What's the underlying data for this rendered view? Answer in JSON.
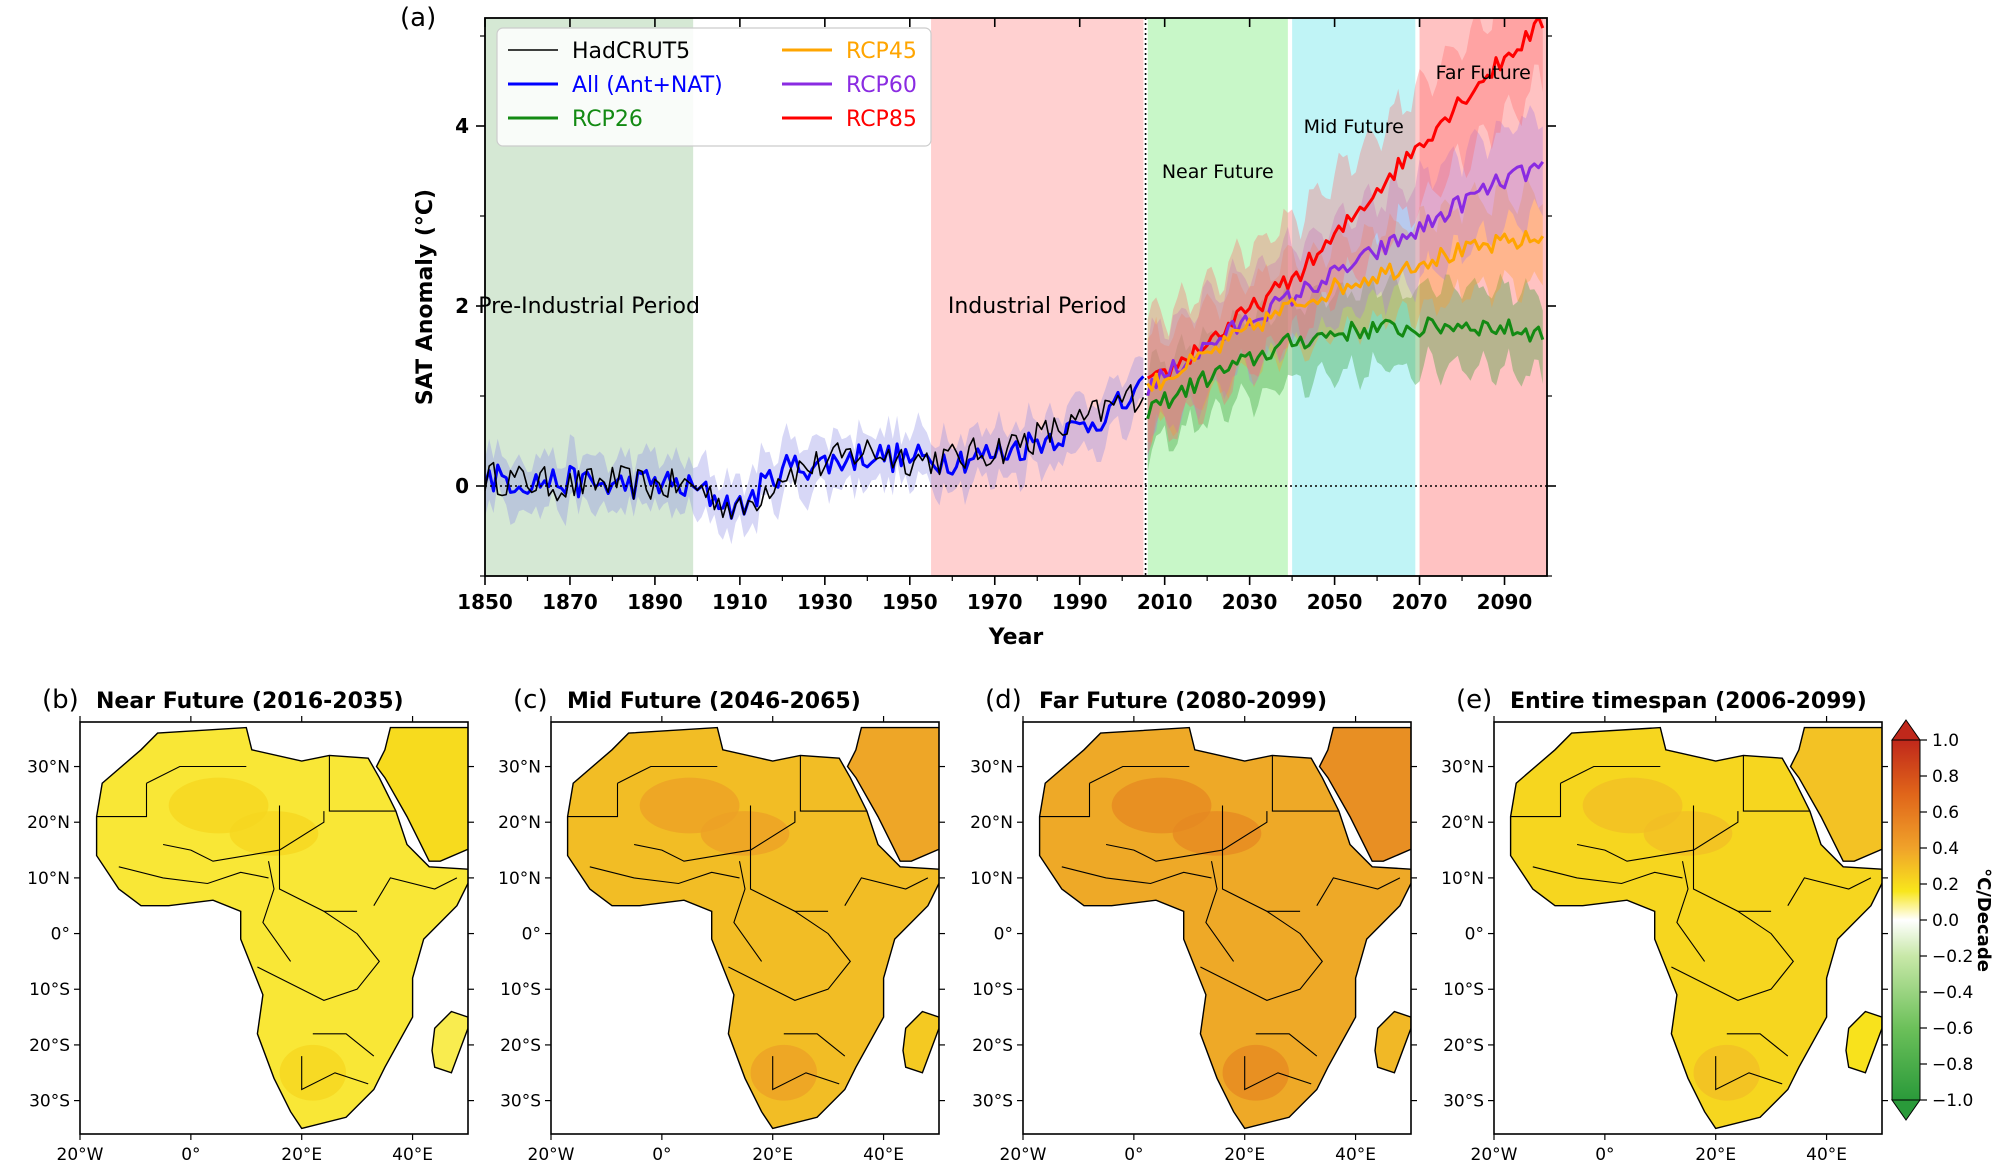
{
  "chart_data": [
    {
      "type": "line",
      "panel_label": "(a)",
      "title": "",
      "xlabel": "Year",
      "ylabel": "SAT Anomaly (°C)",
      "xlim": [
        1850,
        2100
      ],
      "ylim": [
        -1,
        5.2
      ],
      "xticks": [
        1850,
        1870,
        1890,
        1910,
        1930,
        1950,
        1970,
        1990,
        2010,
        2030,
        2050,
        2070,
        2090
      ],
      "yticks": [
        0,
        2,
        4
      ],
      "periods": [
        {
          "name": "Pre-Industrial Period",
          "start": 1850,
          "end": 1899,
          "color": "#d5e8d4"
        },
        {
          "name": "Industrial Period",
          "start": 1955,
          "end": 2005,
          "color": "#ffd0d0"
        },
        {
          "name": "Near Future",
          "start": 2006,
          "end": 2039,
          "color": "#c8f7c8"
        },
        {
          "name": "Mid Future",
          "start": 2040,
          "end": 2069,
          "color": "#c0f4f6"
        },
        {
          "name": "Far Future",
          "start": 2070,
          "end": 2100,
          "color": "#ffc2c2"
        }
      ],
      "legend_position": "top-left",
      "series": [
        {
          "name": "HadCRUT5",
          "color": "#000000",
          "x": [
            1850,
            1860,
            1870,
            1880,
            1890,
            1900,
            1910,
            1920,
            1930,
            1940,
            1950,
            1960,
            1970,
            1980,
            1990,
            2000,
            2005
          ],
          "values": [
            0.1,
            0.05,
            0.0,
            0.05,
            0.0,
            0.0,
            -0.3,
            0.15,
            0.25,
            0.4,
            0.3,
            0.3,
            0.4,
            0.55,
            0.7,
            0.95,
            1.05
          ]
        },
        {
          "name": "All (Ant+NAT)",
          "color": "#0000ff",
          "x": [
            1850,
            1860,
            1870,
            1880,
            1890,
            1900,
            1910,
            1920,
            1930,
            1940,
            1950,
            1960,
            1970,
            1980,
            1990,
            2000,
            2005
          ],
          "values": [
            0.1,
            0.05,
            0.05,
            0.0,
            0.05,
            -0.05,
            -0.25,
            0.2,
            0.25,
            0.35,
            0.3,
            0.3,
            0.35,
            0.5,
            0.65,
            0.9,
            1.05
          ]
        },
        {
          "name": "RCP26",
          "color": "#138a13",
          "x": [
            2006,
            2020,
            2030,
            2040,
            2050,
            2060,
            2070,
            2080,
            2090,
            2099
          ],
          "values": [
            0.85,
            1.2,
            1.4,
            1.6,
            1.7,
            1.75,
            1.75,
            1.8,
            1.75,
            1.7
          ]
        },
        {
          "name": "RCP45",
          "color": "#ffa500",
          "x": [
            2006,
            2020,
            2030,
            2040,
            2050,
            2060,
            2070,
            2080,
            2090,
            2099
          ],
          "values": [
            1.1,
            1.45,
            1.75,
            2.0,
            2.2,
            2.35,
            2.5,
            2.6,
            2.7,
            2.75
          ]
        },
        {
          "name": "RCP60",
          "color": "#8a2be2",
          "x": [
            2006,
            2020,
            2030,
            2040,
            2050,
            2060,
            2070,
            2080,
            2090,
            2099
          ],
          "values": [
            1.1,
            1.55,
            1.85,
            2.1,
            2.35,
            2.6,
            2.85,
            3.15,
            3.4,
            3.55
          ]
        },
        {
          "name": "RCP85",
          "color": "#ff0000",
          "x": [
            2006,
            2020,
            2030,
            2040,
            2050,
            2060,
            2070,
            2080,
            2090,
            2099
          ],
          "values": [
            1.1,
            1.6,
            1.95,
            2.3,
            2.75,
            3.3,
            3.8,
            4.3,
            4.75,
            5.15
          ]
        }
      ]
    },
    {
      "type": "heatmap",
      "panel_label": "(b)",
      "title": "Near Future (2016-2035)",
      "level": 0.35
    },
    {
      "type": "heatmap",
      "panel_label": "(c)",
      "title": "Mid Future (2046-2065)",
      "level": 0.55
    },
    {
      "type": "heatmap",
      "panel_label": "(d)",
      "title": "Far Future (2080-2099)",
      "level": 0.62
    },
    {
      "type": "heatmap",
      "panel_label": "(e)",
      "title": "Entire timespan (2006-2099)",
      "level": 0.45
    }
  ],
  "maps": {
    "lat_ticks": [
      "30°N",
      "20°N",
      "10°N",
      "0°",
      "10°S",
      "20°S",
      "30°S"
    ],
    "lon_ticks": [
      "20°W",
      "0°",
      "20°E",
      "40°E"
    ]
  },
  "colorbar": {
    "label": "°C/Decade",
    "ticks": [
      "1.0",
      "0.8",
      "0.6",
      "0.4",
      "0.2",
      "0.0",
      "−0.2",
      "−0.4",
      "−0.6",
      "−0.8",
      "−1.0"
    ]
  }
}
